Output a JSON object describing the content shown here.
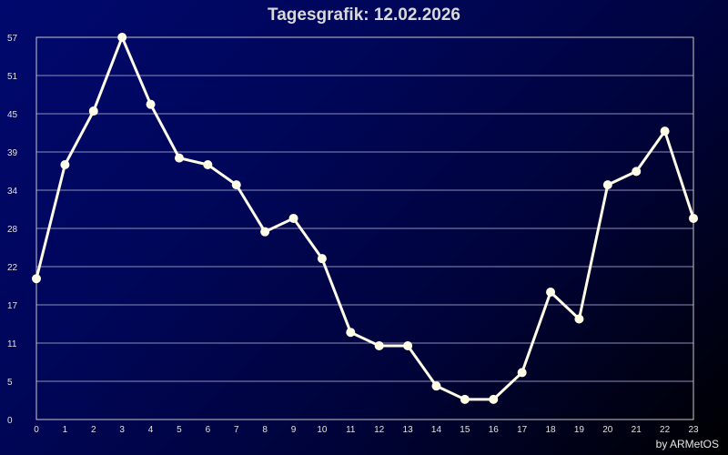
{
  "title": "Tagesgrafik: 12.02.2026",
  "credit": "by ARMetOS",
  "colors": {
    "line": "#fffde8",
    "grid": "#8a8fb8",
    "frame": "#c8c8c8",
    "text": "#e0e0e0"
  },
  "chart_data": {
    "type": "line",
    "title": "Tagesgrafik: 12.02.2026",
    "xlabel": "",
    "ylabel": "",
    "x": [
      0,
      1,
      2,
      3,
      4,
      5,
      6,
      7,
      8,
      9,
      10,
      11,
      12,
      13,
      14,
      15,
      16,
      17,
      18,
      19,
      20,
      21,
      22,
      23
    ],
    "x_tick_labels": [
      "0",
      "1",
      "2",
      "3",
      "4",
      "5",
      "6",
      "7",
      "8",
      "9",
      "10",
      "11",
      "12",
      "13",
      "14",
      "15",
      "16",
      "17",
      "18",
      "19",
      "20",
      "21",
      "22",
      "23"
    ],
    "y_tick_labels": [
      "0",
      "5",
      "11",
      "17",
      "22",
      "28",
      "34",
      "39",
      "45",
      "51",
      "57"
    ],
    "ylim": [
      0,
      57
    ],
    "grid": true,
    "series": [
      {
        "values": [
          21,
          38,
          46,
          57,
          47,
          39,
          38,
          35,
          28,
          30,
          24,
          13,
          11,
          11,
          5,
          3,
          3,
          7,
          19,
          15,
          35,
          37,
          43,
          30
        ]
      }
    ]
  }
}
